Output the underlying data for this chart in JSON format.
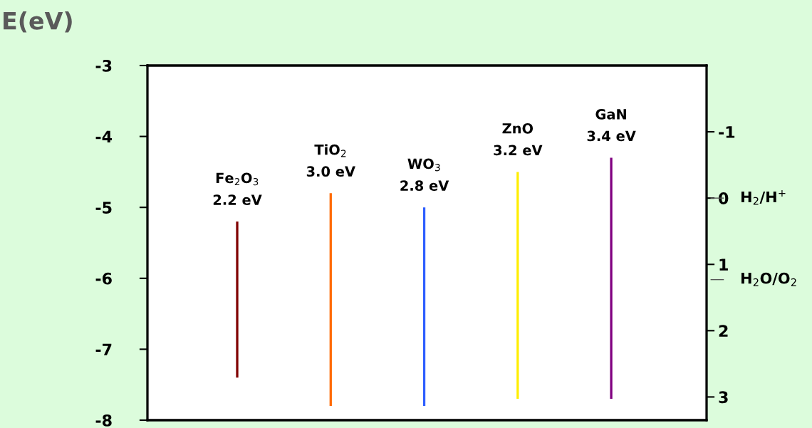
{
  "chart_data": {
    "type": "bar",
    "ylabel": "E(eV)",
    "categories": [
      "Fe$_{2}$O$_{3}$",
      "TiO$_{2}$",
      "WO$_{3}$",
      "ZnO",
      "GaN"
    ],
    "base": [
      -7.4,
      -7.8,
      -7.8,
      -7.7,
      -7.7
    ],
    "values": [
      2.2,
      3.0,
      2.8,
      3.2,
      3.4
    ],
    "value_labels": [
      "2.2 eV",
      "3.0 eV",
      "2.8 eV",
      "3.2 eV",
      "3.4 eV"
    ],
    "colors": [
      "#800000",
      "#ff6a00",
      "#2f5fff",
      "#ffee00",
      "#800080"
    ],
    "ylim": [
      -8,
      -3
    ],
    "yticks": [
      -8,
      -7,
      -6,
      -5,
      -4,
      -3
    ],
    "y2lim": [
      3.35,
      -2.0
    ],
    "y2ticks": [
      -1,
      0,
      1,
      2,
      3
    ],
    "ref_lines": [
      {
        "axis": "y2",
        "value": 0,
        "label": "H$_{2}$/H$^{+}$"
      },
      {
        "axis": "y2",
        "value": 1.23,
        "label": "H$_{2}$O/O$_{2}$"
      }
    ],
    "grid": false,
    "legend": false
  }
}
